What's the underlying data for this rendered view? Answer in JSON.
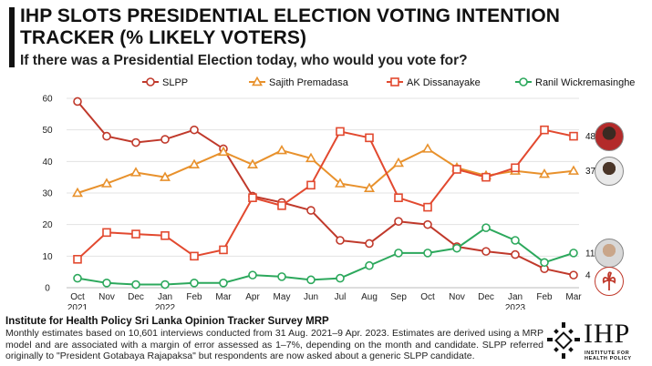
{
  "header": {
    "title": "IHP SLOTS PRESIDENTIAL ELECTION VOTING INTENTION TRACKER (% LIKELY VOTERS)",
    "subtitle": "If there was a Presidential Election today, who would you vote for?"
  },
  "footer": {
    "source": "Institute for Health Policy Sri Lanka Opinion Tracker Survey MRP",
    "note": "Monthly estimates based on 10,601 interviews conducted from 31 Aug. 2021–9 Apr. 2023. Estimates are derived using a MRP model and are associated with a margin of error assessed as 1–7%, depending on the month and candidate. SLPP referred originally to \"President Gotabaya Rajapaksa\" but respondents are now asked about a generic SLPP candidate."
  },
  "logo": {
    "text": "IHP",
    "subtext": "INSTITUTE FOR HEALTH POLICY"
  },
  "chart_data": {
    "type": "line",
    "x": [
      "Oct",
      "Nov",
      "Dec",
      "Jan",
      "Feb",
      "Mar",
      "Apr",
      "May",
      "Jun",
      "Jul",
      "Aug",
      "Sep",
      "Oct",
      "Nov",
      "Dec",
      "Jan",
      "Feb",
      "Mar"
    ],
    "year_labels": [
      {
        "index": 0,
        "label": "2021"
      },
      {
        "index": 3,
        "label": "2022"
      },
      {
        "index": 15,
        "label": "2023"
      }
    ],
    "ylim": [
      0,
      60
    ],
    "yticks": [
      0,
      10,
      20,
      30,
      40,
      50,
      60
    ],
    "grid": true,
    "legend_position": "top",
    "series": [
      {
        "name": "SLPP",
        "color": "#c0392b",
        "marker": "circle",
        "values": [
          59,
          48,
          46,
          47,
          50,
          44,
          29,
          27,
          24.5,
          15,
          14,
          21,
          20,
          13,
          11.5,
          10.5,
          6,
          4
        ],
        "end_label": "4"
      },
      {
        "name": "Sajith Premadasa",
        "color": "#e8912c",
        "marker": "triangle",
        "values": [
          30,
          33,
          36.5,
          35,
          39,
          43,
          39,
          43.5,
          41,
          33,
          31.5,
          39.5,
          44,
          38,
          35.5,
          37,
          36,
          37
        ],
        "end_label": "37"
      },
      {
        "name": "AK Dissanayake",
        "color": "#e2492f",
        "marker": "square",
        "values": [
          9,
          17.5,
          17,
          16.5,
          10,
          12,
          28.5,
          26,
          32.5,
          49.5,
          47.5,
          28.5,
          25.5,
          37.5,
          35,
          38,
          50,
          48
        ],
        "end_label": "48"
      },
      {
        "name": "Ranil Wickremasinghe",
        "color": "#2ca85c",
        "marker": "circle",
        "values": [
          3,
          1.5,
          1,
          1,
          1.5,
          1.5,
          4,
          3.5,
          2.5,
          3,
          7,
          11,
          11,
          12.5,
          19,
          15,
          8,
          11
        ],
        "end_label": "11"
      }
    ]
  }
}
